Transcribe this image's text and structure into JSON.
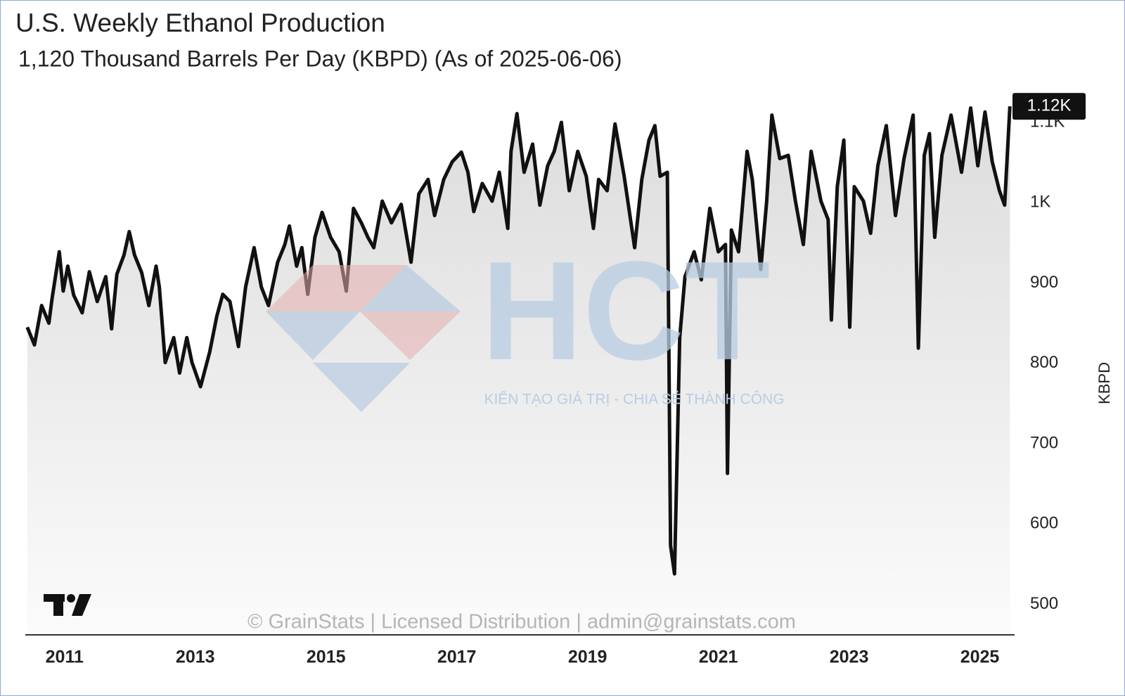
{
  "chart_data": {
    "type": "line",
    "title": "U.S. Weekly Ethanol Production",
    "subtitle": "1,120 Thousand Barrels Per Day (KBPD) (As of 2025-06-06)",
    "y_label": "KBPD",
    "color": "#111111",
    "last_value": {
      "value": 1120,
      "label": "1.12K"
    },
    "watermarks": {
      "logo": "HCT",
      "tagline": "KIẾN TẠO GIÁ TRỊ - CHIA SẺ THÀNH CÔNG",
      "copyright": "© GrainStats | Licensed Distribution | admin@grainstats.com"
    },
    "xlim": [
      2010.4,
      2025.5
    ],
    "xticks": [
      2011,
      2013,
      2015,
      2017,
      2019,
      2021,
      2023,
      2025
    ],
    "ylim": [
      462,
      1136
    ],
    "yticks": [
      500,
      600,
      700,
      800,
      900,
      {
        "value": 1000,
        "label": "1K"
      },
      {
        "value": 1100,
        "label": "1.1K"
      }
    ],
    "x": [
      2010.43,
      2010.54,
      2010.65,
      2010.76,
      2010.81,
      2010.92,
      2010.98,
      2011.05,
      2011.14,
      2011.27,
      2011.38,
      2011.5,
      2011.63,
      2011.72,
      2011.8,
      2011.91,
      2011.99,
      2012.07,
      2012.18,
      2012.29,
      2012.4,
      2012.45,
      2012.54,
      2012.67,
      2012.76,
      2012.87,
      2012.95,
      2013.08,
      2013.22,
      2013.33,
      2013.42,
      2013.53,
      2013.66,
      2013.77,
      2013.9,
      2014.01,
      2014.12,
      2014.26,
      2014.37,
      2014.44,
      2014.55,
      2014.63,
      2014.72,
      2014.83,
      2014.94,
      2015.07,
      2015.2,
      2015.31,
      2015.42,
      2015.54,
      2015.64,
      2015.73,
      2015.86,
      2016.0,
      2016.15,
      2016.3,
      2016.42,
      2016.56,
      2016.66,
      2016.8,
      2016.93,
      2017.07,
      2017.17,
      2017.26,
      2017.39,
      2017.54,
      2017.65,
      2017.78,
      2017.83,
      2017.92,
      2018.03,
      2018.16,
      2018.27,
      2018.39,
      2018.49,
      2018.6,
      2018.72,
      2018.85,
      2018.98,
      2019.09,
      2019.17,
      2019.3,
      2019.42,
      2019.56,
      2019.72,
      2019.83,
      2019.94,
      2020.03,
      2020.11,
      2020.22,
      2020.27,
      2020.33,
      2020.41,
      2020.49,
      2020.63,
      2020.74,
      2020.87,
      2021.0,
      2021.11,
      2021.14,
      2021.2,
      2021.31,
      2021.44,
      2021.52,
      2021.65,
      2021.74,
      2021.82,
      2021.94,
      2022.07,
      2022.18,
      2022.3,
      2022.42,
      2022.57,
      2022.68,
      2022.73,
      2022.82,
      2022.92,
      2023.01,
      2023.08,
      2023.22,
      2023.33,
      2023.44,
      2023.57,
      2023.71,
      2023.84,
      2023.98,
      2024.06,
      2024.15,
      2024.23,
      2024.31,
      2024.42,
      2024.56,
      2024.72,
      2024.86,
      2024.97,
      2025.08,
      2025.19,
      2025.3,
      2025.38,
      2025.46
    ],
    "values": [
      845,
      823,
      872,
      850,
      881,
      939,
      890,
      921,
      885,
      863,
      914,
      877,
      908,
      843,
      911,
      935,
      964,
      935,
      913,
      872,
      921,
      895,
      801,
      832,
      788,
      832,
      801,
      771,
      814,
      859,
      886,
      877,
      821,
      895,
      944,
      895,
      872,
      926,
      948,
      971,
      921,
      944,
      886,
      957,
      988,
      957,
      939,
      890,
      993,
      975,
      957,
      944,
      1002,
      975,
      998,
      926,
      1011,
      1029,
      984,
      1029,
      1051,
      1063,
      1038,
      989,
      1024,
      1002,
      1038,
      968,
      1064,
      1111,
      1038,
      1073,
      997,
      1046,
      1064,
      1100,
      1015,
      1064,
      1033,
      968,
      1029,
      1015,
      1098,
      1033,
      944,
      1029,
      1078,
      1096,
      1033,
      1038,
      573,
      538,
      832,
      908,
      939,
      904,
      993,
      939,
      948,
      663,
      966,
      939,
      1064,
      1029,
      917,
      1002,
      1109,
      1055,
      1059,
      1002,
      948,
      1064,
      1002,
      979,
      854,
      1020,
      1078,
      845,
      1020,
      1002,
      962,
      1046,
      1096,
      984,
      1055,
      1109,
      819,
      1059,
      1086,
      957,
      1059,
      1109,
      1038,
      1118,
      1046,
      1113,
      1051,
      1015,
      997,
      1120
    ]
  }
}
